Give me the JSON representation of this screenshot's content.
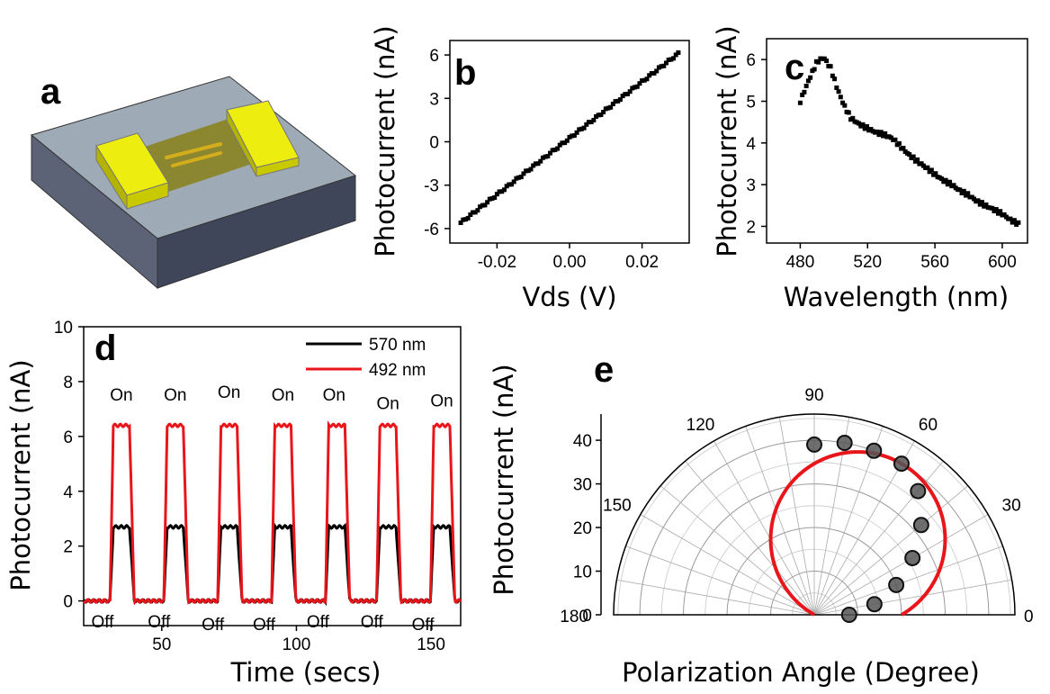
{
  "panel_labels": {
    "a": "a",
    "b": "b",
    "c": "c",
    "d": "d",
    "e": "e"
  },
  "device": {
    "colors": {
      "substrate_top": "#9eaab6",
      "substrate_front": "#5c6376",
      "substrate_side": "#404659",
      "electrode": "#dddd00",
      "electrode_side": "#b4b400",
      "channel": "#8a8730",
      "nanowire": "#d4ad1c"
    }
  },
  "chart_data": [
    {
      "id": "b",
      "type": "scatter",
      "xlabel": "Vds (V)",
      "ylabel": "Photocurrent (nA)",
      "xlim": [
        -0.033,
        0.033
      ],
      "ylim": [
        -7,
        7
      ],
      "xticks": [
        -0.02,
        0.0,
        0.02
      ],
      "xtick_labels": [
        "-0.02",
        "0.00",
        "0.02"
      ],
      "yticks": [
        -6,
        -3,
        0,
        3,
        6
      ],
      "ytick_labels": [
        "-6",
        "-3",
        "0",
        "3",
        "6"
      ],
      "series": [
        {
          "x_start": -0.03,
          "x_end": 0.03,
          "y_start": -5.6,
          "y_end": 6.1,
          "color": "#000000"
        }
      ]
    },
    {
      "id": "c",
      "type": "scatter",
      "xlabel": "Wavelength (nm)",
      "ylabel": "Photocurrent (nA)",
      "xlim": [
        460,
        615
      ],
      "ylim": [
        1.6,
        6.5
      ],
      "xticks": [
        480,
        520,
        560,
        600
      ],
      "xtick_labels": [
        "480",
        "520",
        "560",
        "600"
      ],
      "yticks": [
        2,
        3,
        4,
        5,
        6
      ],
      "ytick_labels": [
        "2",
        "3",
        "4",
        "5",
        "6"
      ],
      "series": [
        {
          "color": "#000000",
          "x": [
            480,
            485,
            490,
            494,
            498,
            502,
            506,
            510,
            515,
            520,
            525,
            530,
            535,
            540,
            545,
            550,
            555,
            560,
            565,
            570,
            575,
            580,
            585,
            590,
            595,
            600,
            605,
            610
          ],
          "y": [
            5.0,
            5.5,
            5.95,
            6.05,
            5.8,
            5.3,
            4.9,
            4.6,
            4.45,
            4.35,
            4.25,
            4.2,
            4.1,
            3.9,
            3.7,
            3.55,
            3.4,
            3.25,
            3.1,
            3.0,
            2.85,
            2.75,
            2.6,
            2.5,
            2.4,
            2.3,
            2.15,
            2.05
          ]
        }
      ]
    },
    {
      "id": "d",
      "type": "line",
      "xlabel": "Time (secs)",
      "ylabel": "Photocurrent (nA)",
      "xlim": [
        21,
        161
      ],
      "ylim": [
        -0.9,
        10
      ],
      "xticks": [
        50,
        100,
        150
      ],
      "xtick_labels": [
        "50",
        "100",
        "150"
      ],
      "yticks": [
        0,
        2,
        4,
        6,
        8,
        10
      ],
      "ytick_labels": [
        "0",
        "2",
        "4",
        "6",
        "8",
        "10"
      ],
      "legend_position": "top-right",
      "pulse_starts": [
        32,
        52,
        72,
        92,
        112,
        131,
        151
      ],
      "pulse_width": 6,
      "series": [
        {
          "name": "570 nm",
          "color": "#000000",
          "on_level": 2.7,
          "off_level": 0
        },
        {
          "name": "492 nm",
          "color": "#e8161a",
          "on_level": 6.4,
          "off_level": 0
        }
      ],
      "annotations": {
        "on": {
          "text": "On",
          "x": [
            35,
            55,
            75,
            95,
            114,
            134,
            154
          ],
          "y": [
            7.3,
            7.3,
            7.4,
            7.3,
            7.3,
            7.0,
            7.1
          ]
        },
        "off": {
          "text": "Off",
          "x": [
            28,
            49,
            69,
            88,
            108,
            128,
            147
          ],
          "y": [
            -0.5,
            -0.5,
            -0.6,
            -0.6,
            -0.5,
            -0.5,
            -0.6
          ]
        }
      }
    },
    {
      "id": "e",
      "type": "scatter",
      "subtype": "polar",
      "xlabel": "Polarization Angle (Degree)",
      "ylabel": "Photocurrent (nA)",
      "rlim": [
        0,
        46
      ],
      "rticks": [
        0,
        10,
        20,
        30,
        40
      ],
      "rtick_labels": [
        "0",
        "10",
        "20",
        "30",
        "40"
      ],
      "angle_ticks": [
        0,
        30,
        60,
        90,
        120,
        150,
        180
      ],
      "angle_tick_labels": [
        "0",
        "30",
        "60",
        "90",
        "120",
        "150",
        "180"
      ],
      "fit": {
        "color": "#e8161a",
        "amplitude": 40,
        "center_deg": 60,
        "start_deg": 0,
        "end_deg": 165
      },
      "points": {
        "color": "#111111",
        "angle": [
          0,
          10,
          20,
          30,
          40,
          50,
          60,
          70,
          80,
          90
        ],
        "r": [
          8,
          14,
          20,
          26,
          32,
          37,
          40,
          40,
          40,
          39
        ]
      }
    }
  ]
}
